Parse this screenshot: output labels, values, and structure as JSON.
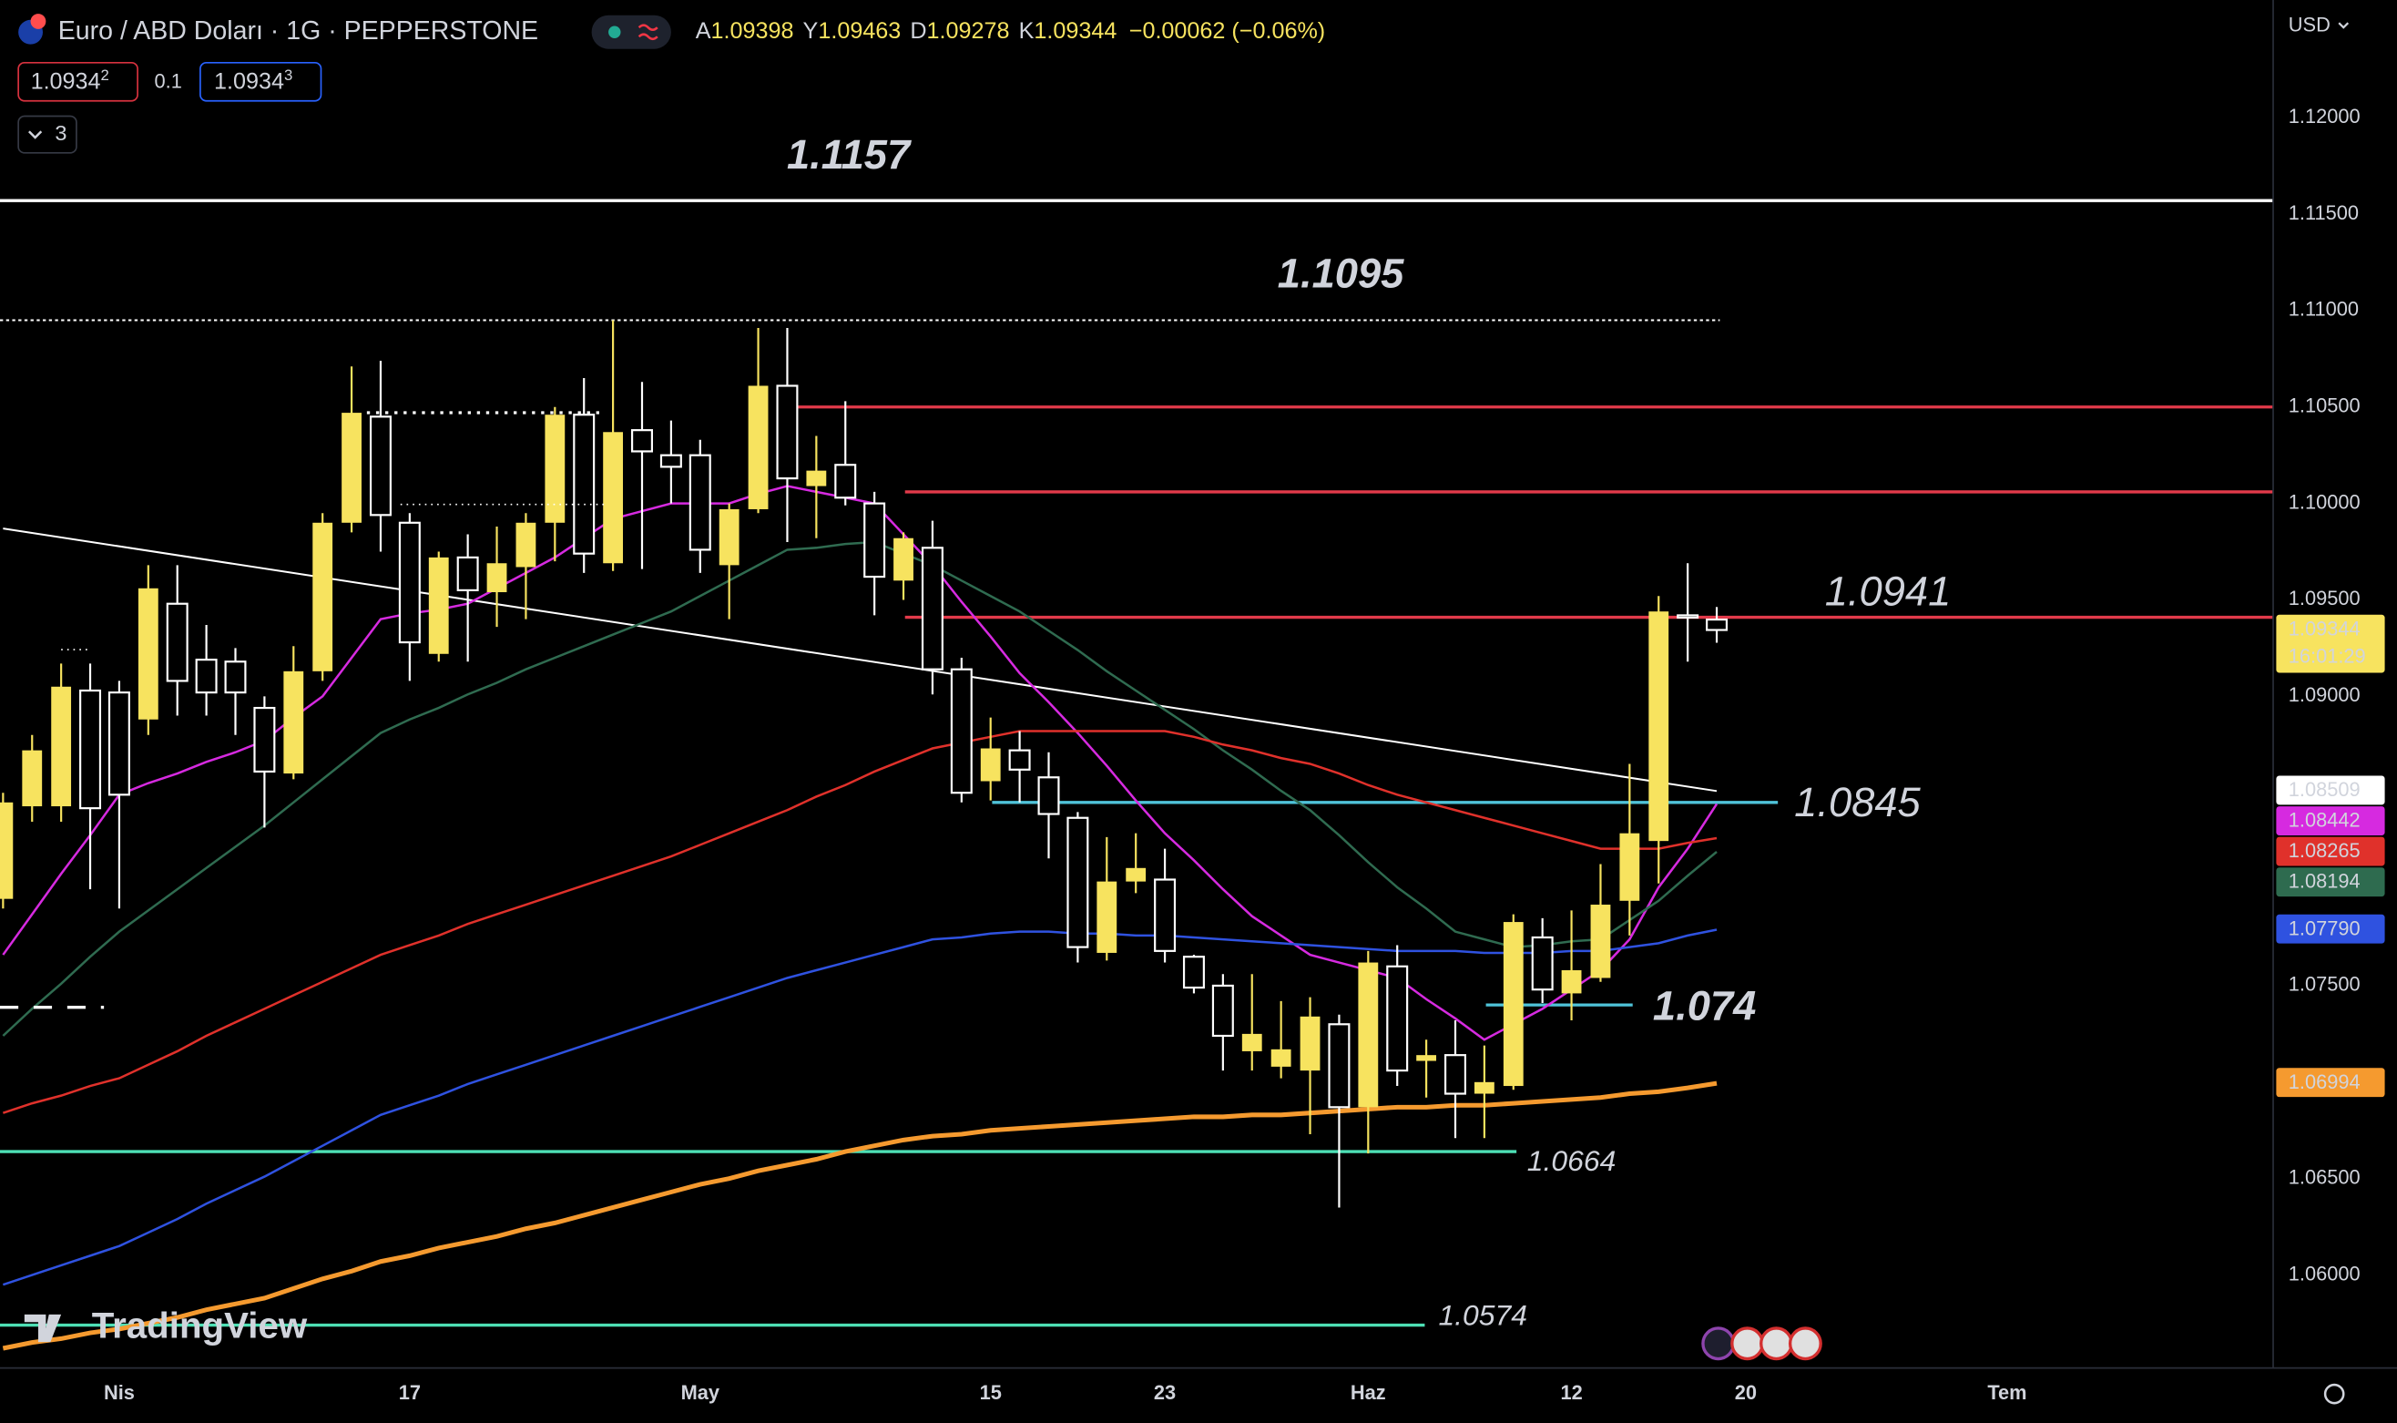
{
  "header": {
    "symbol": "Euro / ABD Doları · 1G · PEPPERSTONE",
    "open_prefix": "A",
    "high_prefix": "Y",
    "low_prefix": "D",
    "close_prefix": "K",
    "change": "−0.00062 (−0.06%)",
    "sell": "1.09342",
    "spread": "0.1",
    "buy": "1.09343",
    "indicators_count": "3",
    "currency": "USD"
  },
  "chart_data": {
    "type": "candlestick",
    "categories": [
      null,
      null,
      null,
      null,
      "Nis",
      null,
      null,
      null,
      null,
      null,
      null,
      null,
      null,
      null,
      "17",
      null,
      null,
      null,
      null,
      null,
      null,
      null,
      null,
      null,
      "May",
      null,
      null,
      null,
      null,
      null,
      null,
      null,
      null,
      null,
      "15",
      null,
      null,
      null,
      null,
      null,
      "23",
      null,
      null,
      null,
      null,
      null,
      null,
      "Haz",
      null,
      null,
      null,
      null,
      null,
      null,
      "12",
      null,
      null,
      null,
      null,
      null,
      "20",
      null,
      null,
      null,
      null,
      null,
      null,
      null,
      null,
      "Tem"
    ],
    "open": [
      1.0795,
      1.0843,
      1.0843,
      1.0903,
      1.0902,
      1.0888,
      1.0948,
      1.0919,
      1.0918,
      1.0894,
      1.086,
      1.0913,
      1.099,
      1.1045,
      1.099,
      1.0922,
      1.0972,
      1.0954,
      1.0967,
      1.099,
      1.1046,
      1.0969,
      1.1038,
      1.1025,
      1.1025,
      1.0968,
      1.0997,
      1.1061,
      1.1009,
      1.102,
      1.1,
      1.096,
      1.0977,
      1.0914,
      1.0856,
      1.0872,
      1.0858,
      1.0837,
      1.0767,
      1.0804,
      1.0805,
      1.0765,
      1.075,
      1.0716,
      1.0708,
      1.0706,
      1.073,
      1.0687,
      1.076,
      1.0711,
      1.0714,
      1.0694,
      1.0698,
      1.0775,
      1.0746,
      1.0754,
      1.0794,
      1.0825,
      1.0942,
      1.09398,
      null,
      null,
      null,
      null,
      null,
      null,
      null,
      null,
      null,
      null
    ],
    "high": [
      1.085,
      1.088,
      1.0917,
      1.0917,
      1.0908,
      1.0968,
      1.0968,
      1.0937,
      1.0925,
      1.09,
      1.0926,
      1.0995,
      1.1071,
      1.1074,
      1.0995,
      1.0975,
      1.0984,
      1.0988,
      1.0995,
      1.105,
      1.1065,
      1.1095,
      1.1063,
      1.1043,
      1.1033,
      1.1,
      1.1091,
      1.1091,
      1.1035,
      1.1053,
      1.1006,
      1.0985,
      1.0991,
      1.092,
      1.0889,
      1.0882,
      1.0871,
      1.084,
      1.0827,
      1.0829,
      1.0821,
      1.0766,
      1.0756,
      1.0756,
      1.0742,
      1.0744,
      1.0735,
      1.0768,
      1.0771,
      1.0722,
      1.0732,
      1.0719,
      1.0787,
      1.0785,
      1.0789,
      1.0813,
      1.0865,
      1.0952,
      1.0969,
      1.09463,
      null,
      null,
      null,
      null,
      null,
      null,
      null,
      null,
      null,
      null
    ],
    "low": [
      1.079,
      1.0835,
      1.0835,
      1.08,
      1.079,
      1.088,
      1.089,
      1.089,
      1.088,
      1.0832,
      1.0857,
      1.0908,
      1.0985,
      1.0975,
      1.0908,
      1.0918,
      1.0918,
      1.0936,
      1.094,
      1.097,
      1.0964,
      1.0965,
      1.0966,
      1.1,
      1.0964,
      1.094,
      1.0995,
      1.098,
      1.0982,
      1.0999,
      1.0942,
      1.095,
      1.0901,
      1.0845,
      1.0846,
      1.0845,
      1.0816,
      1.0762,
      1.0763,
      1.0798,
      1.0762,
      1.0746,
      1.0706,
      1.0706,
      1.0702,
      1.0673,
      1.0635,
      1.0663,
      1.0698,
      1.0692,
      1.0671,
      1.0671,
      1.0696,
      1.0741,
      1.0732,
      1.0752,
      1.0776,
      1.0803,
      1.0918,
      1.09278,
      null,
      null,
      null,
      null,
      null,
      null,
      null,
      null,
      null,
      null
    ],
    "close": [
      1.0845,
      1.0872,
      1.0905,
      1.0842,
      1.0849,
      1.0956,
      1.0908,
      1.0902,
      1.0902,
      1.0861,
      1.0913,
      1.099,
      1.1047,
      1.0994,
      1.0928,
      1.0972,
      1.0955,
      1.0969,
      1.099,
      1.1046,
      1.0974,
      1.1037,
      1.1027,
      1.1019,
      1.0976,
      1.0997,
      1.1061,
      1.1013,
      1.1017,
      1.1003,
      1.0962,
      1.0982,
      1.0914,
      1.085,
      1.0873,
      1.0862,
      1.0839,
      1.077,
      1.0804,
      1.0811,
      1.0768,
      1.0749,
      1.0724,
      1.0725,
      1.0717,
      1.0734,
      1.0687,
      1.0762,
      1.0706,
      1.0714,
      1.0694,
      1.07,
      1.0783,
      1.0748,
      1.0758,
      1.0792,
      1.0829,
      1.0944,
      1.0941,
      1.09344,
      null,
      null,
      null,
      null,
      null,
      null,
      null,
      null,
      null,
      null
    ],
    "up_color": "#f7e35f",
    "down_color": "#ffffff",
    "countdown": "16:01:29",
    "watermark": "TradingView",
    "ylim": [
      1.05518,
      1.1261
    ],
    "yticks": [
      {
        "value": 1.06,
        "label": "1.06000"
      },
      {
        "value": 1.065,
        "label": "1.06500"
      },
      {
        "value": 1.075,
        "label": "1.07500"
      },
      {
        "value": 1.09,
        "label": "1.09000"
      },
      {
        "value": 1.095,
        "label": "1.09500"
      },
      {
        "value": 1.1,
        "label": "1.10000"
      },
      {
        "value": 1.105,
        "label": "1.10500"
      },
      {
        "value": 1.11,
        "label": "1.11000"
      },
      {
        "value": 1.115,
        "label": "1.11500"
      },
      {
        "value": 1.12,
        "label": "1.12000"
      }
    ],
    "series": [
      {
        "color": "#d62ae0",
        "last_label": "1.08442",
        "values": [
          1.0766,
          1.0787,
          1.0808,
          1.0828,
          1.0849,
          1.0855,
          1.086,
          1.0866,
          1.0871,
          1.0877,
          1.0889,
          1.09,
          1.092,
          1.094,
          1.0943,
          1.0945,
          1.0948,
          1.0956,
          1.0964,
          1.0972,
          1.0982,
          1.0992,
          1.0996,
          1.1,
          1.1,
          1.1,
          1.1005,
          1.1009,
          1.1006,
          1.1003,
          1.1,
          1.0984,
          1.0968,
          1.0949,
          1.0931,
          1.0912,
          1.0897,
          1.0881,
          1.0864,
          1.0846,
          1.0829,
          1.0815,
          1.08,
          1.0786,
          1.0776,
          1.0766,
          1.0762,
          1.0758,
          1.0754,
          1.0743,
          1.0733,
          1.0722,
          1.073,
          1.0738,
          1.0748,
          1.0758,
          1.0774,
          1.0801,
          1.0821,
          1.08442,
          null,
          null,
          null,
          null,
          null,
          null,
          null,
          null,
          null,
          null
        ]
      },
      {
        "color": "#2f6b50",
        "last_label": "1.08194",
        "values": [
          1.0724,
          1.0738,
          1.0751,
          1.0765,
          1.0778,
          1.0789,
          1.08,
          1.0811,
          1.0822,
          1.0833,
          1.0845,
          1.0857,
          1.0869,
          1.0881,
          1.0888,
          1.0894,
          1.0901,
          1.0907,
          1.0914,
          1.092,
          1.0926,
          1.0932,
          1.0938,
          1.0944,
          1.0952,
          1.096,
          1.0968,
          1.0976,
          1.0977,
          1.0979,
          1.098,
          1.0974,
          1.0968,
          1.096,
          1.0952,
          1.0944,
          1.0934,
          1.0924,
          1.0913,
          1.0903,
          1.0893,
          1.0883,
          1.0872,
          1.0862,
          1.0851,
          1.0841,
          1.0828,
          1.0814,
          1.0801,
          1.079,
          1.0778,
          1.0774,
          1.077,
          1.0771,
          1.0773,
          1.0774,
          1.0784,
          1.0794,
          1.0807,
          1.08194,
          null,
          null,
          null,
          null,
          null,
          null,
          null,
          null,
          null,
          null
        ]
      },
      {
        "color": "#e0312b",
        "last_label": "1.08265",
        "values": [
          1.0684,
          1.0689,
          1.0693,
          1.0698,
          1.0702,
          1.0709,
          1.0716,
          1.0724,
          1.0731,
          1.0738,
          1.0745,
          1.0752,
          1.0759,
          1.0766,
          1.0771,
          1.0776,
          1.0782,
          1.0787,
          1.0792,
          1.0797,
          1.0802,
          1.0807,
          1.0812,
          1.0817,
          1.0823,
          1.0829,
          1.0835,
          1.0841,
          1.0848,
          1.0854,
          1.0861,
          1.0867,
          1.0873,
          1.0876,
          1.0879,
          1.0882,
          1.0882,
          1.0882,
          1.0882,
          1.0882,
          1.0882,
          1.0879,
          1.0875,
          1.0872,
          1.0868,
          1.0865,
          1.086,
          1.0854,
          1.0849,
          1.0845,
          1.0841,
          1.0837,
          1.0833,
          1.0829,
          1.0825,
          1.0821,
          1.0821,
          1.0821,
          1.0824,
          1.08265,
          null,
          null,
          null,
          null,
          null,
          null,
          null,
          null,
          null,
          null
        ]
      },
      {
        "color": "#2f52e0",
        "last_label": "1.07790",
        "values": [
          1.0595,
          1.06,
          1.0605,
          1.061,
          1.0615,
          1.0622,
          1.0629,
          1.0637,
          1.0644,
          1.0651,
          1.0659,
          1.0667,
          1.0675,
          1.0683,
          1.0688,
          1.0693,
          1.0699,
          1.0704,
          1.0709,
          1.0714,
          1.0719,
          1.0724,
          1.0729,
          1.0734,
          1.0739,
          1.0744,
          1.0749,
          1.0754,
          1.0758,
          1.0762,
          1.0766,
          1.077,
          1.0774,
          1.0775,
          1.0777,
          1.0778,
          1.0778,
          1.0777,
          1.0777,
          1.0776,
          1.0776,
          1.0775,
          1.0774,
          1.0773,
          1.0772,
          1.0771,
          1.077,
          1.0769,
          1.0768,
          1.0768,
          1.0768,
          1.0767,
          1.0767,
          1.0767,
          1.0768,
          1.0768,
          1.077,
          1.0772,
          1.0776,
          1.0779,
          null,
          null,
          null,
          null,
          null,
          null,
          null,
          null,
          null,
          null
        ]
      },
      {
        "color": "#f59a2f",
        "last_label": "1.06994",
        "values": [
          1.0562,
          1.0565,
          1.0567,
          1.057,
          1.0572,
          1.0575,
          1.0578,
          1.0582,
          1.0585,
          1.0588,
          1.0593,
          1.0598,
          1.0602,
          1.0607,
          1.061,
          1.0614,
          1.0617,
          1.062,
          1.0624,
          1.0627,
          1.0631,
          1.0635,
          1.0639,
          1.0643,
          1.0647,
          1.065,
          1.0654,
          1.0657,
          1.066,
          1.0664,
          1.0667,
          1.067,
          1.0672,
          1.0673,
          1.0675,
          1.0676,
          1.0677,
          1.0678,
          1.0679,
          1.068,
          1.0681,
          1.0682,
          1.0682,
          1.0683,
          1.0683,
          1.0684,
          1.0685,
          1.0686,
          1.0687,
          1.0687,
          1.0688,
          1.0688,
          1.0689,
          1.069,
          1.0691,
          1.0692,
          1.0694,
          1.0695,
          1.0697,
          1.06994,
          null,
          null,
          null,
          null,
          null,
          null,
          null,
          null,
          null,
          null
        ]
      }
    ],
    "trendline": {
      "start": 1.0987,
      "end": 1.08509,
      "color": "#ffffff"
    },
    "levels": [
      {
        "value": 1.1157,
        "label": "1.1157",
        "color": "#ffffff"
      },
      {
        "value": 1.1095,
        "label": "1.1095",
        "color": "#ffffff"
      },
      {
        "value": 1.105,
        "color": "#e23a4a"
      },
      {
        "value": 1.1006,
        "color": "#e23a4a"
      },
      {
        "value": 1.0941,
        "label": "1.0941",
        "color": "#e23a4a"
      },
      {
        "value": 1.0845,
        "label": "1.0845",
        "color": "#4fc3d9"
      },
      {
        "value": 1.074,
        "label": "1.074",
        "color": "#4fc3d9"
      },
      {
        "value": 1.0664,
        "label": "1.0664",
        "color": "#4ee0b5"
      },
      {
        "value": 1.0574,
        "label": "1.0574",
        "color": "#4ee0b5"
      }
    ]
  }
}
